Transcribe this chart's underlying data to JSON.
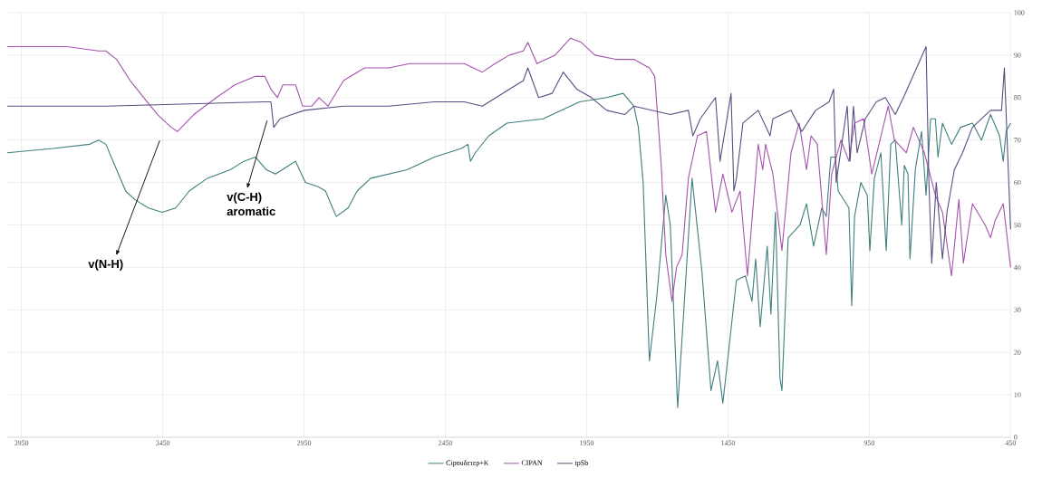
{
  "chart_data": {
    "type": "line",
    "xlim": [
      4000,
      450
    ],
    "ylim": [
      0,
      100
    ],
    "xticks": [
      3950,
      3450,
      2950,
      2450,
      1950,
      1450,
      950,
      450
    ],
    "yticks": [
      0,
      10,
      20,
      30,
      40,
      50,
      60,
      70,
      80,
      90,
      100
    ],
    "grid": true,
    "legend": "bottom",
    "marker": "none",
    "line_style": "solid",
    "annotations": [
      "v(N-H)",
      "v(C-H) aromatic"
    ],
    "series": [
      {
        "name": "Cipouδετερ+K",
        "color": "#3f7f7c",
        "x": [
          4000,
          3838,
          3709,
          3677,
          3651,
          3613,
          3581,
          3549,
          3500,
          3452,
          3404,
          3356,
          3292,
          3211,
          3163,
          3122,
          3083,
          3051,
          3003,
          2980,
          2945,
          2900,
          2874,
          2836,
          2794,
          2762,
          2714,
          2585,
          2489,
          2393,
          2370,
          2361,
          2344,
          2296,
          2232,
          2104,
          1975,
          1879,
          1821,
          1783,
          1767,
          1750,
          1728,
          1702,
          1670,
          1654,
          1628,
          1606,
          1577,
          1542,
          1510,
          1487,
          1468,
          1420,
          1388,
          1365,
          1352,
          1336,
          1311,
          1298,
          1282,
          1266,
          1259,
          1237,
          1195,
          1172,
          1147,
          1118,
          1102,
          1086,
          1070,
          1060,
          1022,
          1012,
          1002,
          980,
          957,
          948,
          932,
          909,
          890,
          874,
          858,
          835,
          826,
          813,
          806,
          787,
          765,
          749,
          733,
          716,
          707,
          691,
          659,
          627,
          585,
          553,
          521,
          489,
          476,
          466,
          450
        ],
        "values": [
          67,
          68,
          69,
          70,
          69,
          63,
          58,
          56,
          54,
          53,
          54,
          58,
          61,
          63,
          65,
          66,
          63,
          62,
          64,
          65,
          60,
          59,
          58,
          52,
          54,
          58,
          61,
          63,
          66,
          68,
          69,
          65,
          67,
          71,
          74,
          75,
          79,
          80,
          81,
          78,
          73,
          60,
          18,
          33,
          57,
          50,
          7,
          30,
          61,
          39,
          11,
          18,
          8,
          37,
          38,
          32,
          42,
          26,
          45,
          29,
          53,
          14,
          11,
          47,
          50,
          55,
          45,
          54,
          52,
          66,
          66,
          58,
          54,
          31,
          52,
          60,
          57,
          44,
          61,
          67,
          44,
          69,
          70,
          50,
          64,
          62,
          42,
          63,
          72,
          57,
          75,
          75,
          66,
          74,
          69,
          73,
          74,
          70,
          76,
          71,
          65,
          72,
          74
        ]
      },
      {
        "name": "CIPAN",
        "color": "#a652ad",
        "x": [
          4000,
          3789,
          3677,
          3651,
          3613,
          3565,
          3517,
          3468,
          3420,
          3398,
          3340,
          3260,
          3195,
          3122,
          3089,
          3067,
          3044,
          3025,
          2980,
          2955,
          2922,
          2897,
          2865,
          2810,
          2736,
          2650,
          2576,
          2489,
          2383,
          2319,
          2274,
          2223,
          2174,
          2158,
          2126,
          2062,
          2007,
          1969,
          1921,
          1847,
          1783,
          1728,
          1709,
          1686,
          1670,
          1648,
          1632,
          1612,
          1590,
          1558,
          1526,
          1494,
          1468,
          1436,
          1407,
          1381,
          1343,
          1327,
          1317,
          1291,
          1259,
          1227,
          1198,
          1172,
          1156,
          1134,
          1102,
          1083,
          1050,
          1022,
          1002,
          970,
          941,
          883,
          861,
          819,
          794,
          755,
          716,
          691,
          659,
          633,
          617,
          585,
          540,
          521,
          505,
          476,
          450
        ],
        "values": [
          92,
          92,
          91,
          91,
          89,
          84,
          80,
          76,
          73,
          72,
          76,
          80,
          83,
          85,
          85,
          82,
          80,
          83,
          83,
          78,
          78,
          80,
          78,
          84,
          87,
          87,
          88,
          88,
          88,
          86,
          88,
          90,
          91,
          93,
          88,
          90,
          94,
          93,
          90,
          89,
          89,
          87,
          85,
          64,
          43,
          32,
          40,
          43,
          61,
          71,
          72,
          53,
          62,
          53,
          58,
          38,
          69,
          63,
          69,
          62,
          44,
          67,
          74,
          63,
          71,
          69,
          43,
          62,
          70,
          65,
          74,
          75,
          62,
          78,
          70,
          67,
          73,
          67,
          57,
          53,
          38,
          56,
          41,
          55,
          50,
          47,
          51,
          55,
          40
        ]
      },
      {
        "name": "tpSb",
        "color": "#574f80",
        "x": [
          4000,
          3651,
          3089,
          3067,
          3057,
          3035,
          2993,
          2948,
          2810,
          2650,
          2489,
          2383,
          2319,
          2223,
          2174,
          2158,
          2120,
          2072,
          2033,
          1985,
          1933,
          1879,
          1815,
          1783,
          1654,
          1590,
          1574,
          1548,
          1494,
          1478,
          1439,
          1429,
          1420,
          1397,
          1343,
          1301,
          1291,
          1227,
          1189,
          1140,
          1092,
          1076,
          1067,
          1028,
          1018,
          1006,
          993,
          964,
          925,
          893,
          858,
          829,
          749,
          739,
          729,
          713,
          691,
          675,
          649,
          620,
          585,
          521,
          482,
          472,
          450
        ],
        "values": [
          78,
          78,
          79,
          79,
          73,
          75,
          76,
          77,
          78,
          78,
          79,
          79,
          78,
          82,
          84,
          87,
          80,
          81,
          86,
          82,
          80,
          77,
          76,
          78,
          76,
          77,
          71,
          75,
          80,
          65,
          81,
          58,
          61,
          74,
          77,
          71,
          75,
          77,
          72,
          77,
          79,
          82,
          60,
          78,
          65,
          78,
          67,
          75,
          79,
          80,
          76,
          80,
          92,
          60,
          41,
          60,
          42,
          53,
          63,
          67,
          73,
          77,
          77,
          87,
          49
        ]
      }
    ]
  }
}
